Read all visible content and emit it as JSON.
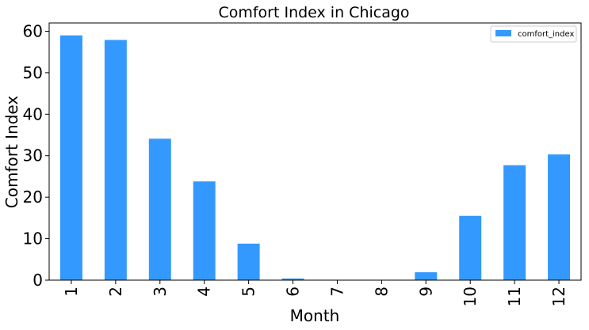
{
  "chart_data": {
    "type": "bar",
    "title": "Comfort Index in Chicago",
    "xlabel": "Month",
    "ylabel": "Comfort Index",
    "categories": [
      "1",
      "2",
      "3",
      "4",
      "5",
      "6",
      "7",
      "8",
      "9",
      "10",
      "11",
      "12"
    ],
    "series": [
      {
        "name": "comfort_index",
        "color": "#3399ff",
        "values": [
          59.0,
          57.9,
          34.1,
          23.8,
          8.8,
          0.4,
          0.0,
          0.0,
          1.9,
          15.5,
          27.7,
          30.3
        ]
      }
    ],
    "ylim": [
      0,
      62
    ],
    "yticks": [
      0,
      10,
      20,
      30,
      40,
      50,
      60
    ],
    "grid": false,
    "legend_position": "top-right"
  }
}
